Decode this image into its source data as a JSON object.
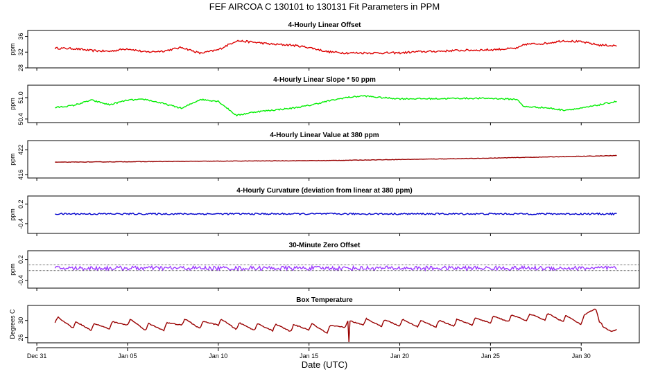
{
  "chart_data": {
    "type": "line",
    "title": "FEF   AIRCOA C  130101 to 130131   Fit Parameters in PPM",
    "xlabel": "Date (UTC)",
    "x_range_days": [
      -0.5,
      33.2
    ],
    "x_ticks": [
      {
        "day": 0,
        "label": "Dec 31"
      },
      {
        "day": 5,
        "label": "Jan 05"
      },
      {
        "day": 10,
        "label": "Jan 10"
      },
      {
        "day": 15,
        "label": "Jan 15"
      },
      {
        "day": 20,
        "label": "Jan 20"
      },
      {
        "day": 25,
        "label": "Jan 25"
      },
      {
        "day": 30,
        "label": "Jan 30"
      }
    ],
    "panels": [
      {
        "title": "4-Hourly Linear Offset",
        "ylabel": "ppm",
        "ylim": [
          28,
          37.5
        ],
        "yticks": [
          {
            "v": 28,
            "label": "28"
          },
          {
            "v": 32,
            "label": "32"
          },
          {
            "v": 36,
            "label": "36"
          }
        ],
        "color": "#dd0000",
        "noise": 0.25,
        "series": [
          [
            1,
            33
          ],
          [
            2,
            32.9
          ],
          [
            3,
            32.4
          ],
          [
            4,
            32.2
          ],
          [
            5,
            32.9
          ],
          [
            6,
            32
          ],
          [
            7,
            32.3
          ],
          [
            8,
            33.2
          ],
          [
            9,
            31.7
          ],
          [
            10,
            32.6
          ],
          [
            11,
            34.9
          ],
          [
            12,
            34.5
          ],
          [
            13,
            34
          ],
          [
            14,
            33.8
          ],
          [
            15,
            33.2
          ],
          [
            16,
            32.1
          ],
          [
            17,
            31.8
          ],
          [
            18,
            31.8
          ],
          [
            19,
            31.8
          ],
          [
            20,
            31.8
          ],
          [
            21,
            32.1
          ],
          [
            22,
            32.2
          ],
          [
            23,
            32.4
          ],
          [
            24,
            32.5
          ],
          [
            25,
            32.6
          ],
          [
            26.5,
            33
          ],
          [
            26.9,
            34
          ],
          [
            28,
            34.2
          ],
          [
            29,
            34.9
          ],
          [
            30,
            34.6
          ],
          [
            31,
            33.8
          ],
          [
            32,
            33.6
          ]
        ]
      },
      {
        "title": "4-Hourly Linear Slope * 50 ppm",
        "ylabel": "ppm",
        "ylim": [
          50.3,
          51.35
        ],
        "yticks": [
          {
            "v": 50.4,
            "label": "50.4"
          },
          {
            "v": 51.0,
            "label": "51.0"
          }
        ],
        "color": "#00ee00",
        "noise": 0.02,
        "series": [
          [
            1,
            50.72
          ],
          [
            2,
            50.78
          ],
          [
            3,
            50.93
          ],
          [
            4,
            50.8
          ],
          [
            5,
            50.93
          ],
          [
            6,
            50.95
          ],
          [
            7,
            50.83
          ],
          [
            8,
            50.7
          ],
          [
            9,
            50.95
          ],
          [
            10,
            50.9
          ],
          [
            11,
            50.5
          ],
          [
            12,
            50.6
          ],
          [
            13,
            50.65
          ],
          [
            14,
            50.7
          ],
          [
            15,
            50.78
          ],
          [
            16,
            50.9
          ],
          [
            17,
            51.0
          ],
          [
            18,
            51.05
          ],
          [
            19,
            51.0
          ],
          [
            20,
            50.97
          ],
          [
            21,
            50.97
          ],
          [
            22,
            50.97
          ],
          [
            23,
            50.98
          ],
          [
            24,
            50.98
          ],
          [
            25,
            50.98
          ],
          [
            26.5,
            50.95
          ],
          [
            26.8,
            50.75
          ],
          [
            28,
            50.72
          ],
          [
            29,
            50.65
          ],
          [
            30,
            50.7
          ],
          [
            31,
            50.8
          ],
          [
            32,
            50.9
          ]
        ]
      },
      {
        "title": "4-Hourly Linear Value at 380 ppm",
        "ylabel": "ppm",
        "ylim": [
          415.2,
          424.2
        ],
        "yticks": [
          {
            "v": 416,
            "label": "416"
          },
          {
            "v": 422,
            "label": "422"
          }
        ],
        "color": "#990000",
        "noise": 0.05,
        "series": [
          [
            1,
            419.0
          ],
          [
            8,
            419.2
          ],
          [
            16,
            419.4
          ],
          [
            24,
            419.9
          ],
          [
            32,
            420.6
          ]
        ]
      },
      {
        "title": "4-Hourly Curvature (deviation from linear at 380 ppm)",
        "ylabel": "ppm",
        "ylim": [
          -0.7,
          0.45
        ],
        "yticks": [
          {
            "v": 0.2,
            "label": "0.2"
          },
          {
            "v": -0.4,
            "label": "-0.4"
          }
        ],
        "color": "#0000cc",
        "noise": 0.025,
        "series": [
          [
            1,
            -0.1
          ],
          [
            32,
            -0.1
          ]
        ]
      },
      {
        "title": "30-Minute Zero Offset",
        "ylabel": "ppm",
        "ylim": [
          -0.62,
          0.45
        ],
        "yticks": [
          {
            "v": 0.2,
            "label": "0.2"
          },
          {
            "v": -0.4,
            "label": "-0.4"
          }
        ],
        "color": "#9933ff",
        "noise": 0.06,
        "ref_lines": [
          0.05,
          -0.12
        ],
        "series": [
          [
            1,
            -0.05
          ],
          [
            32,
            -0.05
          ]
        ]
      },
      {
        "title": "Box Temperature",
        "ylabel": "Degrees C",
        "ylim": [
          24.8,
          33.5
        ],
        "yticks": [
          {
            "v": 26,
            "label": "26"
          },
          {
            "v": 30,
            "label": "30"
          }
        ],
        "color": "#990000",
        "noise": 0.1,
        "series": [
          [
            1,
            30
          ],
          [
            2,
            28.8
          ],
          [
            3,
            28.3
          ],
          [
            4,
            28.6
          ],
          [
            5,
            29.5
          ],
          [
            6,
            28.3
          ],
          [
            7,
            28.3
          ],
          [
            8,
            29.5
          ],
          [
            9,
            28.7
          ],
          [
            10,
            29.5
          ],
          [
            11,
            28.5
          ],
          [
            12,
            28.3
          ],
          [
            13,
            28.2
          ],
          [
            14,
            28
          ],
          [
            15,
            28.4
          ],
          [
            16,
            27.6
          ],
          [
            17,
            29
          ],
          [
            18,
            29.5
          ],
          [
            19,
            29.2
          ],
          [
            20,
            29.3
          ],
          [
            21,
            29.1
          ],
          [
            22,
            29
          ],
          [
            23,
            29.3
          ],
          [
            24,
            29.5
          ],
          [
            25,
            30
          ],
          [
            26,
            30.3
          ],
          [
            27,
            30.5
          ],
          [
            28,
            30.7
          ],
          [
            29,
            30.3
          ],
          [
            30,
            29.6
          ],
          [
            30.8,
            33
          ],
          [
            31.2,
            27.5
          ],
          [
            31.7,
            27.5
          ],
          [
            32,
            28.5
          ]
        ]
      }
    ]
  }
}
